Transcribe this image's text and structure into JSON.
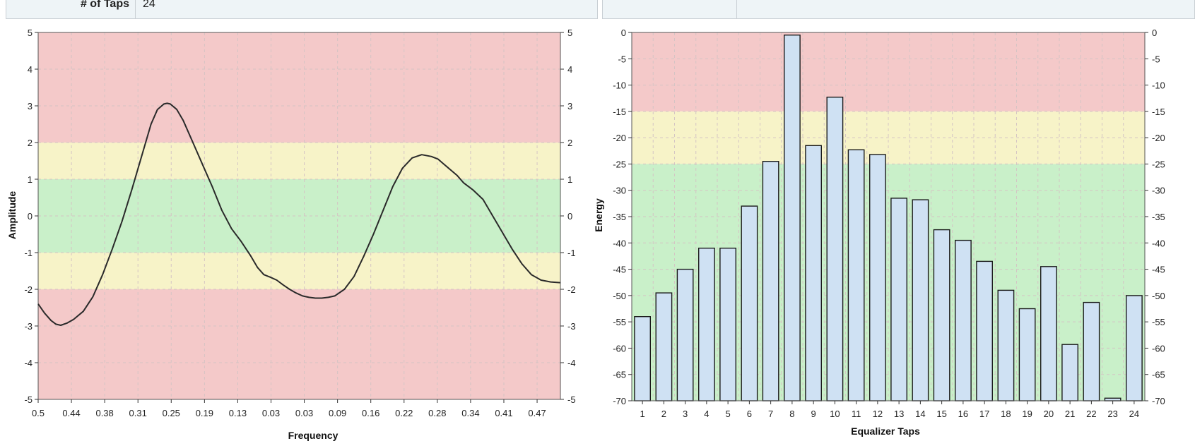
{
  "settings_bar": {
    "taps_label": "# of Taps",
    "taps_value": "24"
  },
  "colors": {
    "red_zone": "#f4c9c9",
    "yellow_zone": "#f7f3c8",
    "green_zone": "#c9f0c9",
    "bar_fill": "#cfe1f3",
    "line": "#2a2a2a"
  },
  "chart_data": [
    {
      "type": "line",
      "xlabel": "Frequency",
      "ylabel": "Amplitude",
      "ylim": [
        -5,
        5
      ],
      "yticks": [
        5,
        4,
        3,
        2,
        1,
        0,
        -1,
        -2,
        -3,
        -4,
        -5
      ],
      "xticks": [
        "0.5",
        "0.44",
        "0.38",
        "0.31",
        "0.25",
        "0.19",
        "0.13",
        "0.03",
        "0.03",
        "0.09",
        "0.16",
        "0.22",
        "0.28",
        "0.34",
        "0.41",
        "0.47"
      ],
      "grid": true,
      "zones": [
        {
          "from": 2,
          "to": 5,
          "level": "red"
        },
        {
          "from": 1,
          "to": 2,
          "level": "yellow"
        },
        {
          "from": -1,
          "to": 1,
          "level": "green"
        },
        {
          "from": -2,
          "to": -1,
          "level": "yellow"
        },
        {
          "from": -5,
          "to": -2,
          "level": "red"
        }
      ],
      "series": [
        {
          "x": [
            0,
            0.2,
            0.4,
            0.55,
            0.7,
            0.9,
            1.1,
            1.4,
            1.7,
            2.0,
            2.3,
            2.6,
            2.9,
            3.2,
            3.5,
            3.7,
            3.9,
            4.0,
            4.1,
            4.3,
            4.5,
            4.8,
            5.1,
            5.4,
            5.7,
            6.0,
            6.3,
            6.6,
            6.8,
            7.0,
            7.2,
            7.4,
            7.6,
            7.8,
            8.0,
            8.2,
            8.4,
            8.6,
            8.8,
            9.0,
            9.2,
            9.5,
            9.8,
            10.1,
            10.4,
            10.7,
            11.0,
            11.3,
            11.6,
            11.9,
            12.2,
            12.4,
            12.6,
            12.8,
            13.0,
            13.2,
            13.5,
            13.8,
            14.1,
            14.4,
            14.7,
            15.0,
            15.3,
            15.6,
            15.9,
            16.2
          ],
          "y": [
            -2.4,
            -2.65,
            -2.85,
            -2.95,
            -2.98,
            -2.92,
            -2.82,
            -2.6,
            -2.2,
            -1.6,
            -0.9,
            -0.15,
            0.7,
            1.6,
            2.5,
            2.9,
            3.05,
            3.07,
            3.05,
            2.9,
            2.6,
            2.0,
            1.4,
            0.8,
            0.15,
            -0.35,
            -0.7,
            -1.1,
            -1.4,
            -1.6,
            -1.67,
            -1.75,
            -1.88,
            -2.0,
            -2.1,
            -2.18,
            -2.22,
            -2.24,
            -2.24,
            -2.22,
            -2.18,
            -2.0,
            -1.65,
            -1.1,
            -0.5,
            0.15,
            0.8,
            1.3,
            1.58,
            1.67,
            1.62,
            1.55,
            1.4,
            1.25,
            1.1,
            0.9,
            0.7,
            0.45,
            0.0,
            -0.45,
            -0.9,
            -1.3,
            -1.6,
            -1.75,
            -1.8,
            -1.82
          ]
        }
      ]
    },
    {
      "type": "bar",
      "xlabel": "Equalizer Taps",
      "ylabel": "Energy",
      "ylim": [
        -70,
        0
      ],
      "yticks": [
        0,
        -5,
        -10,
        -15,
        -20,
        -25,
        -30,
        -35,
        -40,
        -45,
        -50,
        -55,
        -60,
        -65,
        -70
      ],
      "categories": [
        "1",
        "2",
        "3",
        "4",
        "5",
        "6",
        "7",
        "8",
        "9",
        "10",
        "11",
        "12",
        "13",
        "14",
        "15",
        "16",
        "17",
        "18",
        "19",
        "20",
        "21",
        "22",
        "23",
        "24"
      ],
      "values": [
        -54,
        -49.5,
        -45,
        -41,
        -41,
        -33,
        -24.5,
        -0.5,
        -21.5,
        -12.3,
        -22.3,
        -23.2,
        -31.5,
        -31.8,
        -37.5,
        -39.5,
        -43.5,
        -49,
        -52.5,
        -44.5,
        -59.3,
        -51.3,
        -69.5,
        -50
      ],
      "grid": true,
      "zones": [
        {
          "from": -15,
          "to": 0,
          "level": "red"
        },
        {
          "from": -25,
          "to": -15,
          "level": "yellow"
        },
        {
          "from": -70,
          "to": -25,
          "level": "green"
        }
      ]
    }
  ]
}
